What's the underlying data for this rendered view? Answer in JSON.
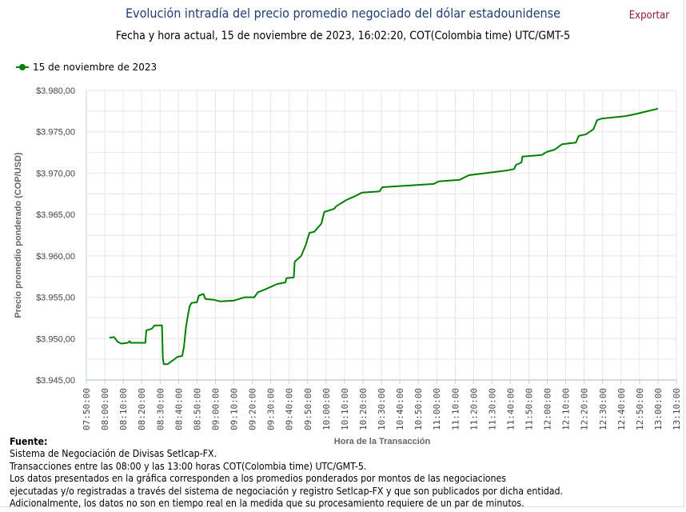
{
  "header": {
    "title": "Evolución intradía del precio promedio negociado del dólar estadounidense",
    "subtitle": "Fecha y hora actual, 15 de noviembre de 2023, 16:02:20, COT(Colombia time) UTC/GMT-5",
    "export_label": "Exportar"
  },
  "footer": {
    "source_label": "Fuente:",
    "lines": [
      "Sistema de Negociación de Divisas Setlcap-FX.",
      "Transacciones entre las 08:00 y las 13:00 horas COT(Colombia time) UTC/GMT-5.",
      "Los datos presentados en la gráfica corresponden a los promedios ponderados por montos de las negociaciones",
      "ejecutadas y/o registradas a través del sistema de negociación y registro Setlcap-FX y que son publicados por dicha entidad.",
      "Adicionalmente, los datos no son en tiempo real en la medida que su procesamiento requiere de un par de minutos."
    ]
  },
  "colors": {
    "series": "#008000",
    "title": "#1f3f73",
    "export": "#8b1a2b",
    "grid": "#e6e6e6",
    "axis": "#c0d0e0"
  },
  "chart_data": {
    "type": "line",
    "title": "Evolución intradía del precio promedio negociado del dólar estadounidense",
    "xlabel": "Hora de la Transacción",
    "ylabel": "Precio promedio ponderado (COP/USD)",
    "legend": {
      "placement": "top-left",
      "entries": [
        "15 de noviembre de 2023"
      ]
    },
    "grid": true,
    "xlim": [
      "07:50:00",
      "13:10:00"
    ],
    "ylim": [
      3945,
      3980
    ],
    "x_ticks": [
      "07:50:00",
      "08:00:00",
      "08:10:00",
      "08:20:00",
      "08:30:00",
      "08:40:00",
      "08:50:00",
      "09:00:00",
      "09:10:00",
      "09:20:00",
      "09:30:00",
      "09:40:00",
      "09:50:00",
      "10:00:00",
      "10:10:00",
      "10:20:00",
      "10:30:00",
      "10:40:00",
      "10:50:00",
      "11:00:00",
      "11:10:00",
      "11:20:00",
      "11:30:00",
      "11:40:00",
      "11:50:00",
      "12:00:00",
      "12:10:00",
      "12:20:00",
      "12:30:00",
      "12:40:00",
      "12:50:00",
      "13:00:00",
      "13:10:00"
    ],
    "y_ticks": [
      {
        "value": 3980,
        "label": "$3.980,00"
      },
      {
        "value": 3975,
        "label": "$3.975,00"
      },
      {
        "value": 3970,
        "label": "$3.970,00"
      },
      {
        "value": 3965,
        "label": "$3.965,00"
      },
      {
        "value": 3960,
        "label": "$3.960,00"
      },
      {
        "value": 3955,
        "label": "$3.955,00"
      },
      {
        "value": 3950,
        "label": "$3.950,00"
      },
      {
        "value": 3945,
        "label": "$3.945,00"
      }
    ],
    "series": [
      {
        "name": "15 de noviembre de 2023",
        "x": [
          "08:02:30",
          "08:05:00",
          "08:07:00",
          "08:09:00",
          "08:12:30",
          "08:13:30",
          "08:14:00",
          "08:22:00",
          "08:22:30",
          "08:25:30",
          "08:27:00",
          "08:31:00",
          "08:31:30",
          "08:32:00",
          "08:34:00",
          "08:39:30",
          "08:42:00",
          "08:43:00",
          "08:44:00",
          "08:45:00",
          "08:46:00",
          "08:47:00",
          "08:50:00",
          "08:51:00",
          "08:53:30",
          "08:54:30",
          "08:59:00",
          "09:02:30",
          "09:10:00",
          "09:16:00",
          "09:21:00",
          "09:23:00",
          "09:27:30",
          "09:33:30",
          "09:38:00",
          "09:38:30",
          "09:42:30",
          "09:43:00",
          "09:46:30",
          "09:49:00",
          "09:50:00",
          "09:51:00",
          "09:53:30",
          "09:55:30",
          "09:57:30",
          "09:59:00",
          "10:04:30",
          "10:05:30",
          "10:11:00",
          "10:15:30",
          "10:19:30",
          "10:29:00",
          "10:30:30",
          "10:58:30",
          "11:01:00",
          "11:12:30",
          "11:17:30",
          "11:37:30",
          "11:42:00",
          "11:43:00",
          "11:46:00",
          "11:46:30",
          "11:57:00",
          "11:59:30",
          "12:04:00",
          "12:08:00",
          "12:15:30",
          "12:17:00",
          "12:21:00",
          "12:25:00",
          "12:27:00",
          "12:29:30",
          "12:42:30",
          "12:47:00",
          "12:54:30",
          "13:00:00"
        ],
        "y": [
          3950.1,
          3950.2,
          3949.6,
          3949.4,
          3949.5,
          3949.7,
          3949.5,
          3949.5,
          3951.0,
          3951.2,
          3951.6,
          3951.6,
          3947.6,
          3946.9,
          3946.9,
          3947.8,
          3947.9,
          3949.1,
          3951.3,
          3952.7,
          3953.9,
          3954.3,
          3954.4,
          3955.2,
          3955.4,
          3954.8,
          3954.7,
          3954.5,
          3954.6,
          3955.0,
          3955.0,
          3955.6,
          3956.0,
          3956.6,
          3956.8,
          3957.3,
          3957.4,
          3959.3,
          3960.0,
          3961.3,
          3962.1,
          3962.8,
          3962.9,
          3963.4,
          3963.9,
          3965.3,
          3965.7,
          3966.0,
          3966.75,
          3967.2,
          3967.65,
          3967.8,
          3968.3,
          3968.7,
          3969.0,
          3969.2,
          3969.75,
          3970.3,
          3970.5,
          3971.0,
          3971.3,
          3972.0,
          3972.2,
          3972.55,
          3972.85,
          3973.5,
          3973.7,
          3974.5,
          3974.7,
          3975.3,
          3976.4,
          3976.6,
          3976.9,
          3977.1,
          3977.5,
          3977.8
        ]
      }
    ]
  }
}
